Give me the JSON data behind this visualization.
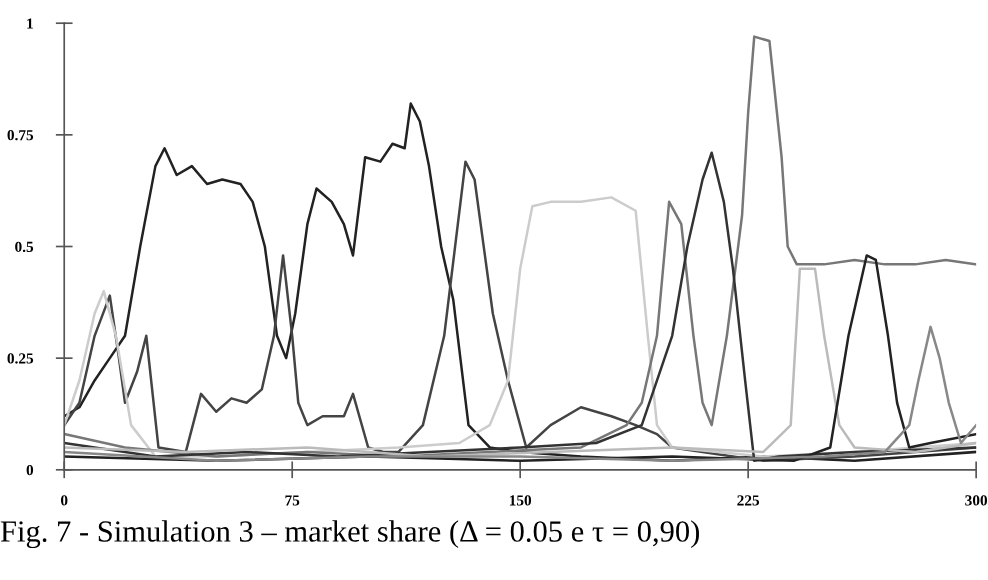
{
  "chart_data": {
    "type": "line",
    "title": "Fig. 7 - Simulation 3 – market share (Δ = 0.05 e τ = 0,90)",
    "xlim": [
      0,
      300
    ],
    "xticks": [
      0,
      75,
      150,
      225,
      300
    ],
    "ylim": [
      0,
      1
    ],
    "yticks": [
      0,
      0.25,
      0.5,
      0.75,
      1
    ],
    "grid": false,
    "marker": "none",
    "line_style": "solid",
    "series": [
      {
        "color": "#222222",
        "x": [
          0,
          5,
          10,
          15,
          20,
          25,
          30,
          33,
          37,
          42,
          47,
          52,
          58,
          62,
          66,
          70,
          73,
          76,
          80,
          83,
          88,
          92,
          95,
          99,
          104,
          108,
          112,
          114,
          117,
          120,
          124,
          128,
          133,
          140,
          150,
          170,
          200,
          230,
          260,
          300
        ],
        "values": [
          0.12,
          0.14,
          0.2,
          0.25,
          0.3,
          0.5,
          0.68,
          0.72,
          0.66,
          0.68,
          0.64,
          0.65,
          0.64,
          0.6,
          0.5,
          0.3,
          0.25,
          0.35,
          0.55,
          0.63,
          0.6,
          0.55,
          0.48,
          0.7,
          0.69,
          0.73,
          0.72,
          0.82,
          0.78,
          0.68,
          0.5,
          0.38,
          0.1,
          0.05,
          0.04,
          0.03,
          0.02,
          0.03,
          0.02,
          0.04
        ]
      },
      {
        "color": "#444444",
        "x": [
          0,
          5,
          10,
          15,
          18,
          20,
          24,
          27,
          31,
          40,
          45,
          50,
          55,
          60,
          65,
          69,
          72,
          75,
          77,
          80,
          85,
          92,
          95,
          100,
          105,
          110,
          118,
          125,
          132,
          135,
          141,
          146,
          152,
          160,
          170,
          180,
          188,
          195,
          200,
          210,
          220,
          230,
          260,
          300
        ],
        "values": [
          0.1,
          0.15,
          0.3,
          0.39,
          0.25,
          0.15,
          0.22,
          0.3,
          0.05,
          0.04,
          0.17,
          0.13,
          0.16,
          0.15,
          0.18,
          0.3,
          0.48,
          0.3,
          0.15,
          0.1,
          0.12,
          0.12,
          0.17,
          0.05,
          0.04,
          0.04,
          0.1,
          0.3,
          0.69,
          0.65,
          0.35,
          0.2,
          0.05,
          0.1,
          0.14,
          0.12,
          0.1,
          0.08,
          0.05,
          0.04,
          0.03,
          0.02,
          0.03,
          0.05
        ]
      },
      {
        "color": "#cccccc",
        "x": [
          0,
          5,
          10,
          13,
          17,
          22,
          30,
          50,
          80,
          110,
          130,
          140,
          146,
          150,
          154,
          160,
          170,
          180,
          188,
          192,
          195,
          200,
          230,
          260,
          300
        ],
        "values": [
          0.1,
          0.2,
          0.35,
          0.4,
          0.3,
          0.1,
          0.03,
          0.03,
          0.04,
          0.05,
          0.06,
          0.1,
          0.2,
          0.45,
          0.59,
          0.6,
          0.6,
          0.61,
          0.58,
          0.3,
          0.1,
          0.05,
          0.03,
          0.04,
          0.06
        ]
      },
      {
        "color": "#777777",
        "x": [
          0,
          20,
          50,
          80,
          110,
          140,
          170,
          185,
          190,
          195,
          199,
          203,
          207,
          210,
          213,
          218,
          223,
          225,
          227,
          232,
          236,
          238,
          241,
          250,
          260,
          270,
          280,
          290,
          300
        ],
        "values": [
          0.08,
          0.05,
          0.03,
          0.04,
          0.03,
          0.04,
          0.05,
          0.1,
          0.15,
          0.3,
          0.6,
          0.55,
          0.3,
          0.15,
          0.1,
          0.3,
          0.57,
          0.8,
          0.97,
          0.96,
          0.7,
          0.5,
          0.46,
          0.46,
          0.47,
          0.46,
          0.46,
          0.47,
          0.46
        ]
      },
      {
        "color": "#333333",
        "x": [
          0,
          30,
          60,
          90,
          120,
          150,
          175,
          190,
          200,
          205,
          210,
          213,
          217,
          220,
          224,
          227,
          235,
          260,
          300
        ],
        "values": [
          0.06,
          0.03,
          0.04,
          0.03,
          0.04,
          0.05,
          0.06,
          0.1,
          0.3,
          0.5,
          0.65,
          0.71,
          0.6,
          0.45,
          0.2,
          0.02,
          0.03,
          0.04,
          0.05
        ]
      },
      {
        "color": "#bbbbbb",
        "x": [
          0,
          40,
          80,
          120,
          160,
          200,
          230,
          236,
          239,
          242,
          247,
          250,
          255,
          260,
          280,
          300
        ],
        "values": [
          0.05,
          0.04,
          0.05,
          0.03,
          0.04,
          0.05,
          0.04,
          0.08,
          0.1,
          0.45,
          0.45,
          0.3,
          0.1,
          0.05,
          0.04,
          0.06
        ]
      },
      {
        "color": "#222222",
        "x": [
          0,
          50,
          100,
          150,
          200,
          240,
          252,
          258,
          264,
          267,
          271,
          274,
          278,
          285,
          300
        ],
        "values": [
          0.03,
          0.02,
          0.03,
          0.02,
          0.03,
          0.02,
          0.05,
          0.3,
          0.48,
          0.47,
          0.3,
          0.15,
          0.05,
          0.06,
          0.08
        ]
      },
      {
        "color": "#888888",
        "x": [
          0,
          50,
          100,
          150,
          200,
          250,
          270,
          278,
          281,
          285,
          288,
          291,
          295,
          300
        ],
        "values": [
          0.04,
          0.02,
          0.03,
          0.03,
          0.02,
          0.03,
          0.04,
          0.1,
          0.2,
          0.32,
          0.25,
          0.15,
          0.06,
          0.1
        ]
      }
    ]
  }
}
